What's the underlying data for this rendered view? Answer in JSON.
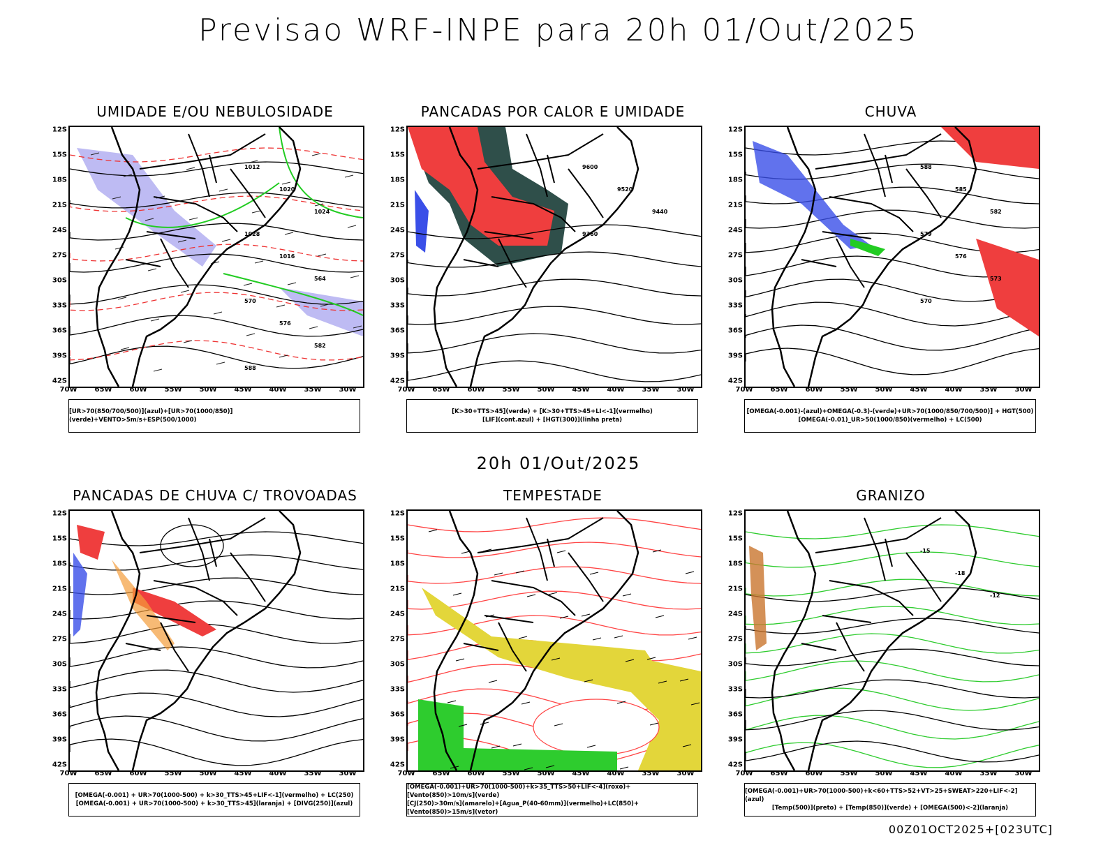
{
  "main_title": "Previsao WRF-INPE  para 20h 01/Out/2025",
  "mid_title": "20h 01/Out/2025",
  "footer": "00Z01OCT2025+[023UTC]",
  "lat_ticks": [
    "12S",
    "15S",
    "18S",
    "21S",
    "24S",
    "27S",
    "30S",
    "33S",
    "36S",
    "39S",
    "42S"
  ],
  "lon_ticks": [
    "70W",
    "65W",
    "60W",
    "55W",
    "50W",
    "45W",
    "40W",
    "35W",
    "30W"
  ],
  "panels": [
    {
      "id": "umidade",
      "title": "UMIDADE E/OU NEBULOSIDADE",
      "legend": [
        "[UR>70(850/700/500)](azul)+[UR>70(1000/850)](verde)+VENTO>5m/s+ESP(500/1000)"
      ],
      "contour_labels": [
        "1012",
        "1020",
        "1024",
        "1028",
        "1016",
        "564",
        "570",
        "576",
        "582",
        "588"
      ]
    },
    {
      "id": "pancadas",
      "title": "PANCADAS POR CALOR E UMIDADE",
      "legend": [
        "[K>30+TTS>45](verde) + [K>30+TTS>45+LI<-1](vermelho)",
        "[LIF](cont.azul) + [HGT(300)](linha preta)"
      ],
      "contour_labels": [
        "9600",
        "9520",
        "9440",
        "9360"
      ]
    },
    {
      "id": "chuva",
      "title": "CHUVA",
      "legend": [
        "[OMEGA(-0.001)-(azul)+OMEGA(-0.3)-(verde)+UR>70(1000/850/700/500)] + HGT(500)",
        "[OMEGA(-0.01)_UR>50(1000/850)(vermelho) + LC(500)"
      ],
      "contour_labels": [
        "588",
        "585",
        "582",
        "579",
        "576",
        "573",
        "570"
      ]
    },
    {
      "id": "trovoadas",
      "title": "PANCADAS DE CHUVA C/ TROVOADAS",
      "legend": [
        "[OMEGA(-0.001) + UR>70(1000-500) + k>30_TTS>45+LIF<-1](vermelho) + LC(250)",
        "[OMEGA(-0.001) + UR>70(1000-500) + k>30_TTS>45](laranja) + [DIVG(250)](azul)"
      ],
      "contour_labels": []
    },
    {
      "id": "tempestade",
      "title": "TEMPESTADE",
      "legend": [
        "[OMEGA(-0.001)+UR>70(1000-500)+k>35_TTS>50+LIF<-4](roxo)+[Vento(850)>10m/s](verde)",
        "[CJ(250)>30m/s](amarelo)+[Agua_P(40-60mm)](vermelho)+LC(850)+[Vento(850)>15m/s](vetor)"
      ],
      "contour_labels": []
    },
    {
      "id": "granizo",
      "title": "GRANIZO",
      "legend": [
        "[OMEGA(-0.001)+UR>70(1000-500)+k<60+TTS>52+VT>25+SWEAT>220+LIF<-2](azul)",
        "[Temp(500)](preto) + [Temp(850)](verde) + [OMEGA(500)<-2](laranja)"
      ],
      "contour_labels": [
        "-15",
        "-18",
        "-12"
      ]
    }
  ]
}
